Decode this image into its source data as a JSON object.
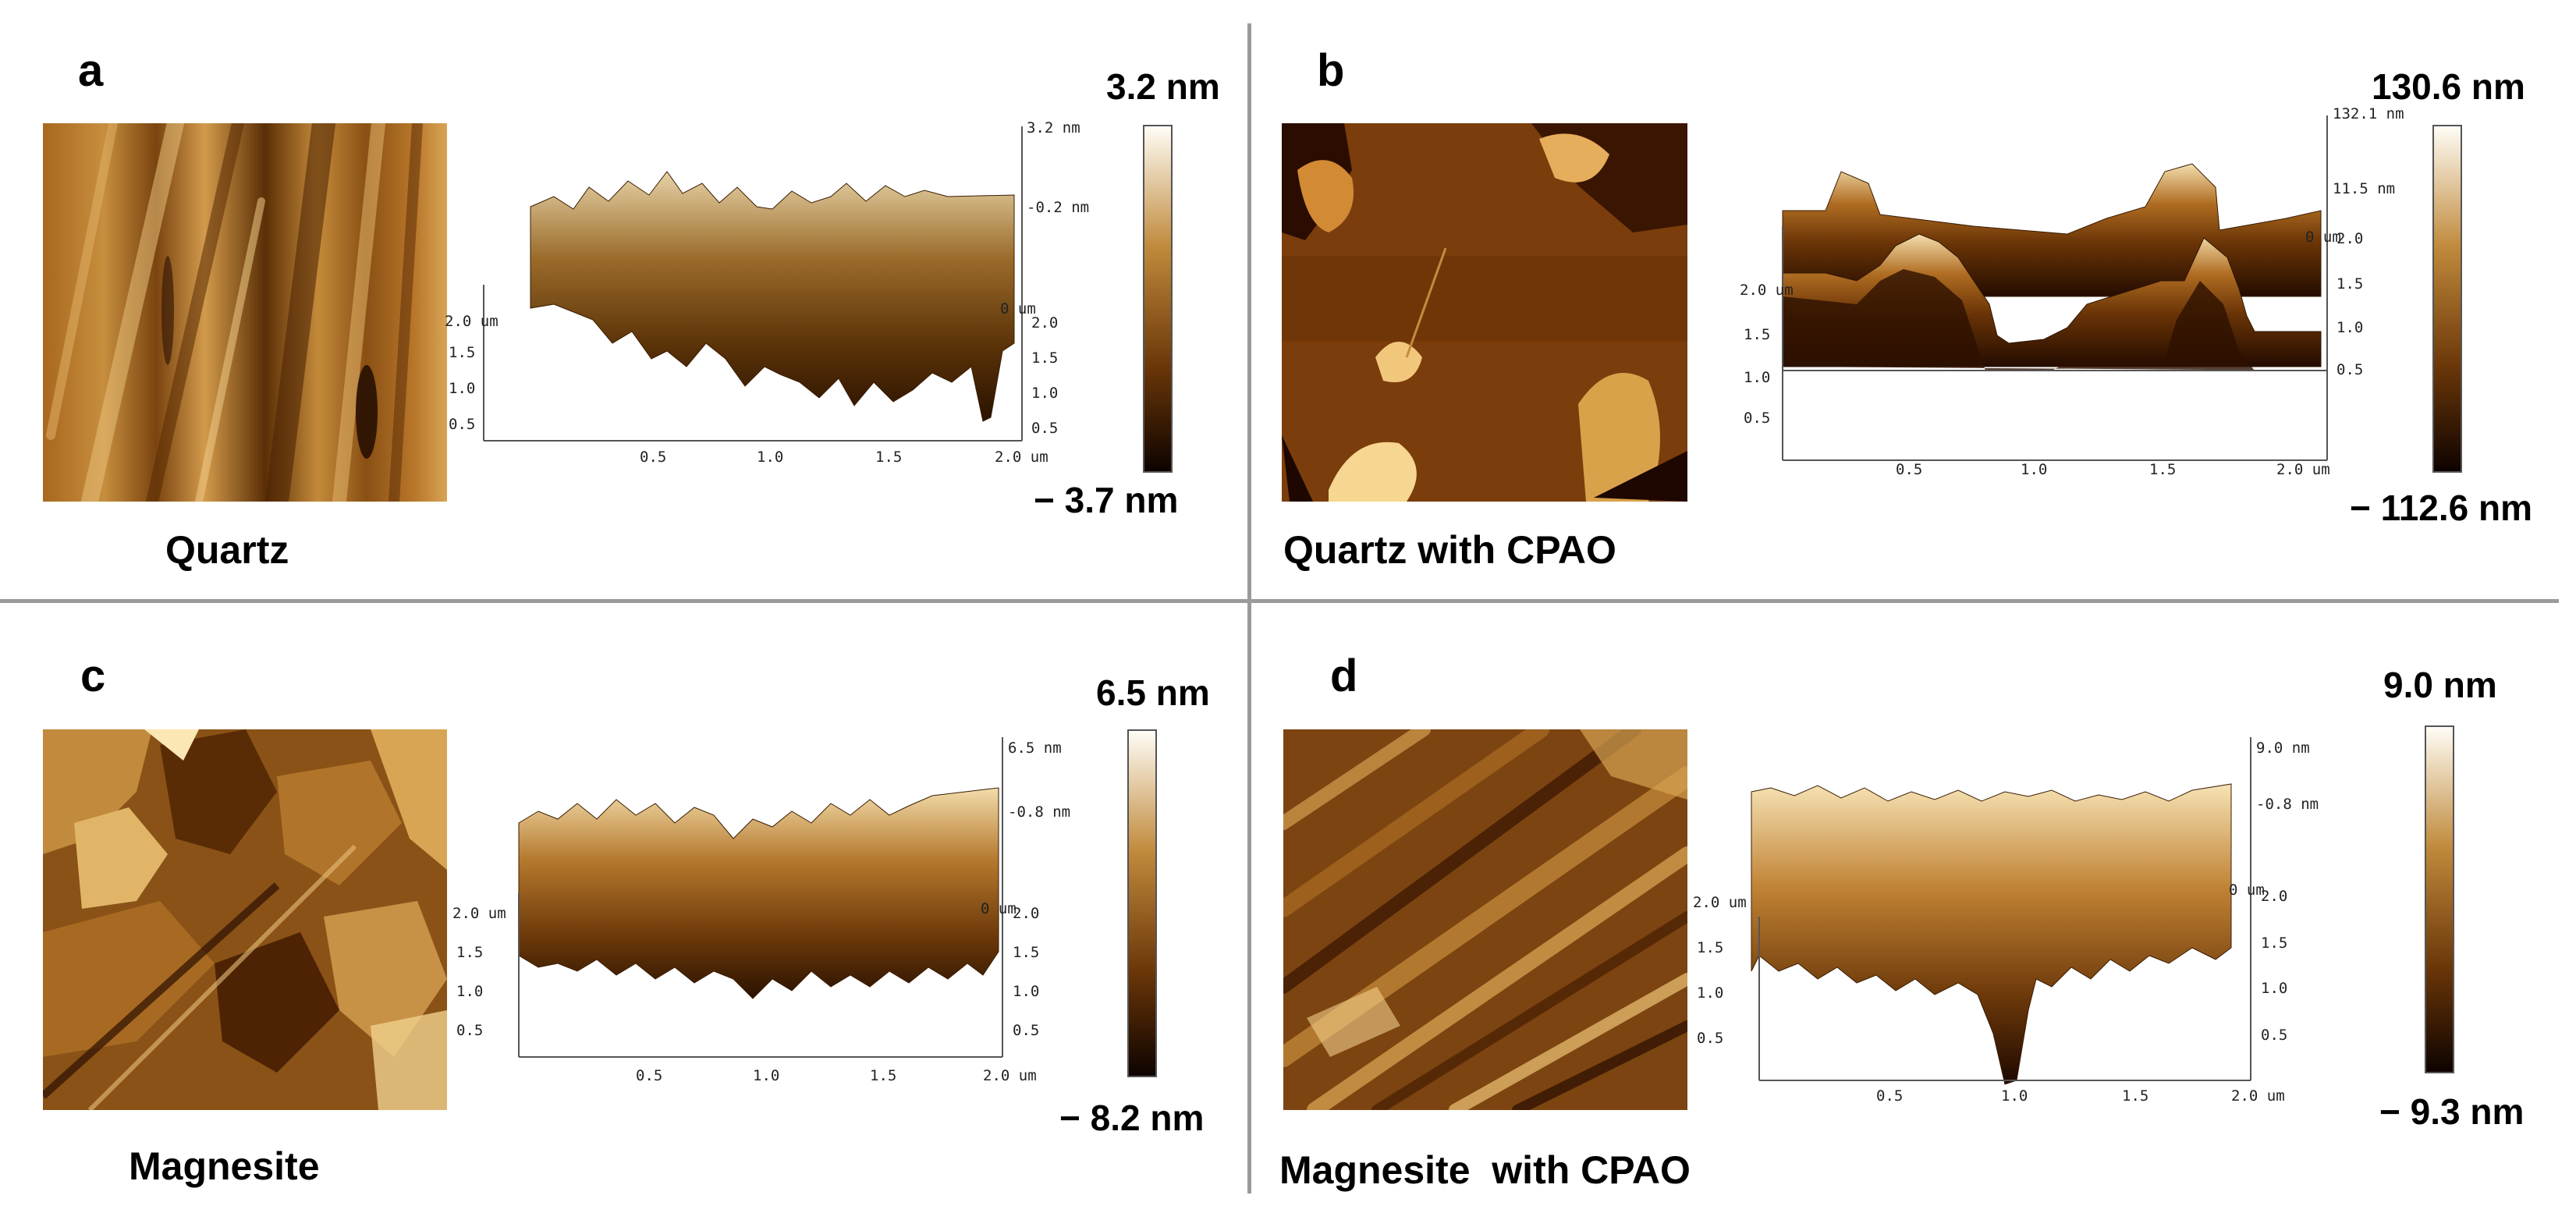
{
  "colors": {
    "afm_dark": "#140500",
    "afm_mid": "#9a5a14",
    "afm_light": "#fffdf6",
    "divider": "#9a9a9a"
  },
  "panels": [
    {
      "letter": "a",
      "sample": "Quartz",
      "colorbar": {
        "max": "3.2 nm",
        "min": "− 3.7 nm"
      },
      "axes3d": {
        "z_ticks": [
          "3.2 nm",
          "-0.2 nm"
        ],
        "y_origin": "0 um",
        "y_ticks": [
          "2.0",
          "1.5",
          "1.0",
          "0.5"
        ],
        "y_left_top": "2.0 um",
        "x_ticks": [
          "0.5",
          "1.0",
          "1.5",
          "2.0 um"
        ]
      }
    },
    {
      "letter": "b",
      "sample": "Quartz with CPAO",
      "colorbar": {
        "max": "130.6 nm",
        "min": "− 112.6 nm"
      },
      "axes3d": {
        "z_ticks": [
          "132.1 nm",
          "11.5 nm"
        ],
        "y_origin": "0 um",
        "y_ticks": [
          "2.0",
          "1.5",
          "1.0",
          "0.5"
        ],
        "y_left_top": "2.0 um",
        "x_ticks": [
          "0.5",
          "1.0",
          "1.5",
          "2.0 um"
        ]
      }
    },
    {
      "letter": "c",
      "sample": "Magnesite",
      "colorbar": {
        "max": "6.5 nm",
        "min": "− 8.2 nm"
      },
      "axes3d": {
        "z_ticks": [
          "6.5 nm",
          "-0.8 nm"
        ],
        "y_origin": "0 um",
        "y_ticks": [
          "2.0",
          "1.5",
          "1.0",
          "0.5"
        ],
        "y_left_top": "2.0 um",
        "x_ticks": [
          "0.5",
          "1.0",
          "1.5",
          "2.0 um"
        ]
      }
    },
    {
      "letter": "d",
      "sample": "Magnesite  with CPAO",
      "colorbar": {
        "max": "9.0 nm",
        "min": "− 9.3 nm"
      },
      "axes3d": {
        "z_ticks": [
          "9.0 nm",
          "-0.8 nm"
        ],
        "y_origin": "0 um",
        "y_ticks": [
          "2.0",
          "1.5",
          "1.0",
          "0.5"
        ],
        "y_left_top": "2.0 um",
        "x_ticks": [
          "0.5",
          "1.0",
          "1.5",
          "2.0 um"
        ]
      }
    }
  ]
}
